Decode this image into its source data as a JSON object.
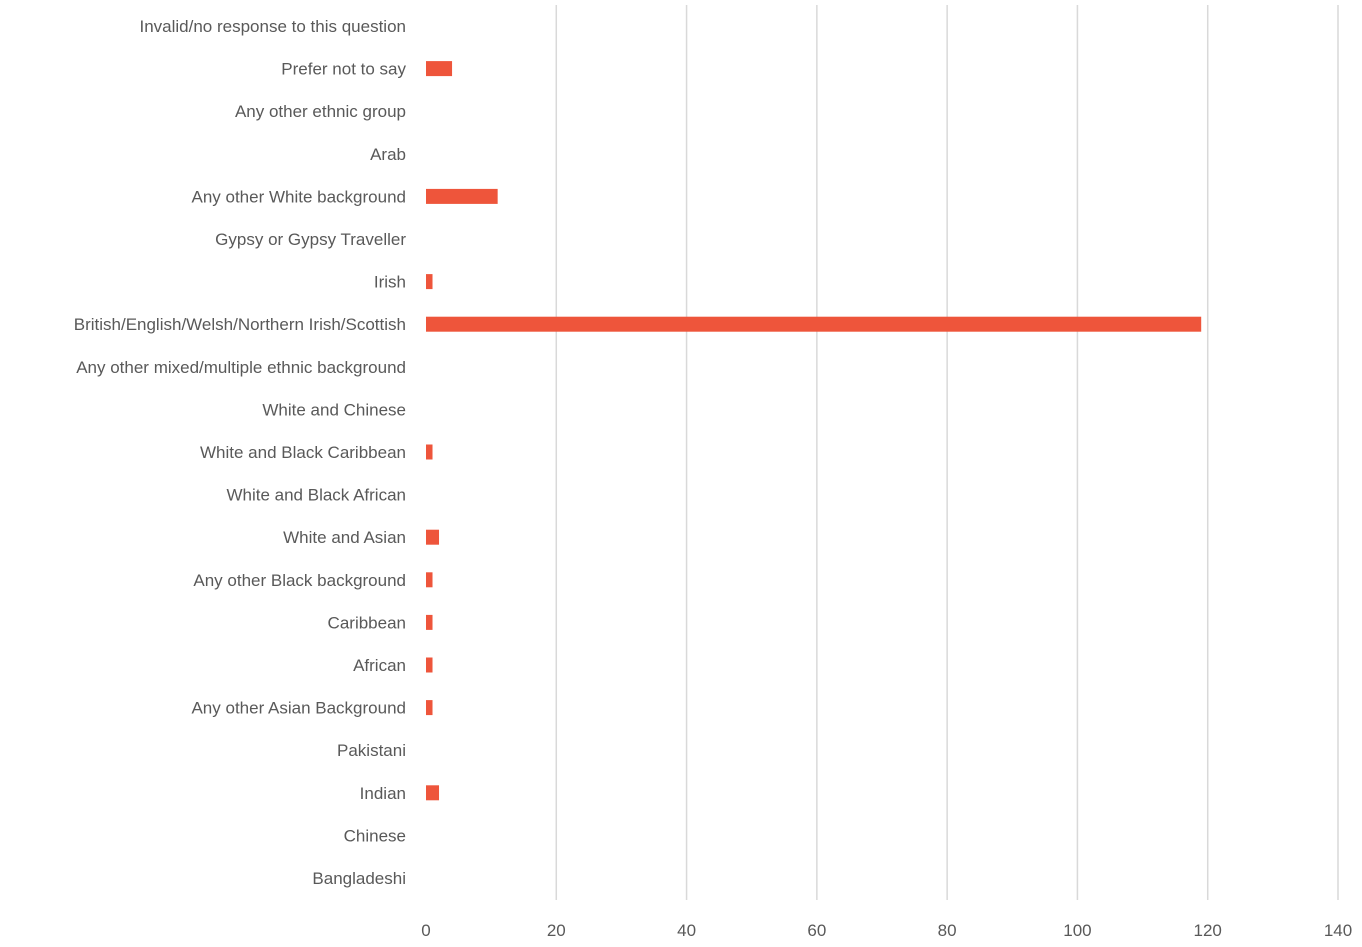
{
  "chart_data": {
    "type": "bar",
    "orientation": "horizontal",
    "title": "",
    "xlabel": "",
    "ylabel": "",
    "xlim": [
      0,
      140
    ],
    "x_ticks": [
      "0",
      "20",
      "40",
      "60",
      "80",
      "100",
      "120",
      "140"
    ],
    "grid": true,
    "legend": "none",
    "categories": [
      "Invalid/no response to this question",
      "Prefer not to say",
      "Any other ethnic group",
      "Arab",
      "Any other White background",
      "Gypsy or Gypsy Traveller",
      "Irish",
      "British/English/Welsh/Northern Irish/Scottish",
      "Any other mixed/multiple ethnic background",
      "White and Chinese",
      "White and Black Caribbean",
      "White and Black African",
      "White and Asian",
      "Any other Black background",
      "Caribbean",
      "African",
      "Any other Asian Background",
      "Pakistani",
      "Indian",
      "Chinese",
      "Bangladeshi"
    ],
    "values": [
      0,
      4,
      0,
      0,
      11,
      0,
      1,
      119,
      0,
      0,
      1,
      0,
      2,
      1,
      1,
      1,
      1,
      0,
      2,
      0,
      0
    ],
    "colors": {
      "bar": "#EE553B",
      "grid": "#D9D9D9",
      "text": "#595959"
    }
  }
}
